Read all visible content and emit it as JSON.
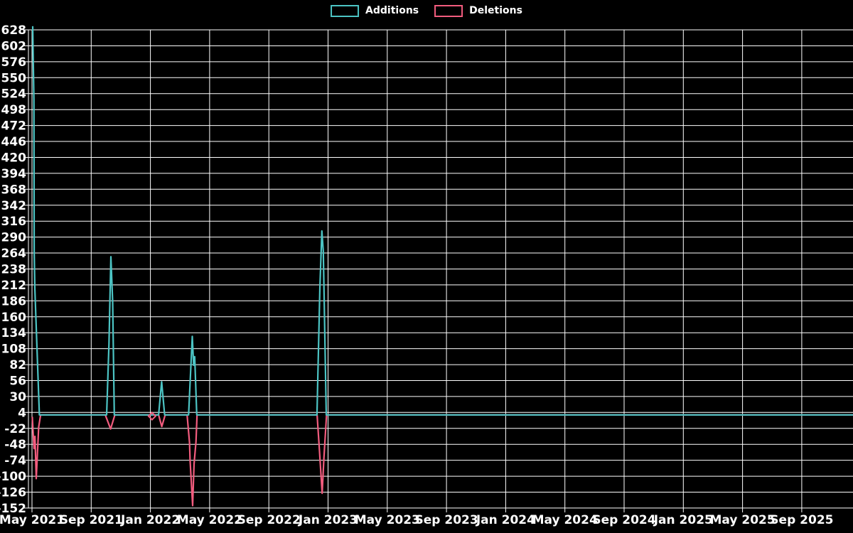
{
  "legend": {
    "position": "top-center",
    "items": [
      {
        "label": "Additions",
        "color": "#4cc4c4"
      },
      {
        "label": "Deletions",
        "color": "#f25c7e"
      }
    ]
  },
  "chart_data": {
    "type": "line",
    "title": "",
    "xlabel": "",
    "ylabel": "",
    "background_color": "#000000",
    "grid": true,
    "grid_color": "#ffffff",
    "text_color": "#ffffff",
    "ylim": [
      -152,
      628
    ],
    "y_tick_step": 26,
    "y_ticks": [
      628,
      602,
      576,
      550,
      524,
      498,
      472,
      446,
      420,
      394,
      368,
      342,
      316,
      290,
      264,
      238,
      212,
      186,
      160,
      134,
      108,
      82,
      56,
      30,
      4,
      -22,
      -48,
      -74,
      -100,
      -126,
      -152
    ],
    "x_ticks": [
      {
        "m": 0,
        "label": "May 2021"
      },
      {
        "m": 4,
        "label": "Sep 2021"
      },
      {
        "m": 8,
        "label": "Jan 2022"
      },
      {
        "m": 12,
        "label": "May 2022"
      },
      {
        "m": 16,
        "label": "Sep 2022"
      },
      {
        "m": 20,
        "label": "Jan 2023"
      },
      {
        "m": 24,
        "label": "May 2023"
      },
      {
        "m": 28,
        "label": "Sep 2023"
      },
      {
        "m": 32,
        "label": "Jan 2024"
      },
      {
        "m": 36,
        "label": "May 2024"
      },
      {
        "m": 40,
        "label": "Sep 2024"
      },
      {
        "m": 44,
        "label": "Jan 2025"
      },
      {
        "m": 48,
        "label": "May 2025"
      },
      {
        "m": 52,
        "label": "Sep 2025"
      }
    ],
    "x_unit": "months since May 2021",
    "series": [
      {
        "name": "Additions",
        "color": "#4cc4c4",
        "points": [
          [
            0.05,
            634
          ],
          [
            0.07,
            597
          ],
          [
            0.13,
            514
          ],
          [
            0.15,
            267
          ],
          [
            0.19,
            207
          ],
          [
            0.27,
            155
          ],
          [
            0.5,
            0
          ],
          [
            5.04,
            0
          ],
          [
            5.2,
            116
          ],
          [
            5.33,
            258
          ],
          [
            5.45,
            184
          ],
          [
            5.56,
            0
          ],
          [
            8.55,
            0
          ],
          [
            8.76,
            54
          ],
          [
            8.96,
            0
          ],
          [
            10.58,
            0
          ],
          [
            10.83,
            128
          ],
          [
            10.92,
            81
          ],
          [
            10.99,
            95
          ],
          [
            11.13,
            0
          ],
          [
            19.25,
            0
          ],
          [
            19.45,
            207
          ],
          [
            19.58,
            300
          ],
          [
            19.68,
            267
          ],
          [
            19.88,
            0
          ],
          [
            55.5,
            0
          ]
        ]
      },
      {
        "name": "Deletions",
        "color": "#f25c7e",
        "points": [
          [
            0.02,
            -3
          ],
          [
            0.14,
            -55
          ],
          [
            0.2,
            -35
          ],
          [
            0.29,
            -104
          ],
          [
            0.45,
            -20
          ],
          [
            0.58,
            0
          ],
          [
            4.95,
            0
          ],
          [
            5.31,
            -23
          ],
          [
            5.6,
            0
          ],
          [
            8.55,
            0
          ],
          [
            8.77,
            -19
          ],
          [
            9.0,
            0
          ],
          [
            10.48,
            0
          ],
          [
            10.64,
            -45
          ],
          [
            10.68,
            -74
          ],
          [
            10.85,
            -148
          ],
          [
            10.95,
            -80
          ],
          [
            11.08,
            -44
          ],
          [
            11.15,
            0
          ],
          [
            19.26,
            0
          ],
          [
            19.42,
            -58
          ],
          [
            19.6,
            -128
          ],
          [
            19.72,
            -70
          ],
          [
            19.9,
            0
          ],
          [
            55.5,
            0
          ]
        ],
        "marker": {
          "m": 8.11,
          "v": -2,
          "shape": "open-diamond"
        }
      }
    ]
  }
}
